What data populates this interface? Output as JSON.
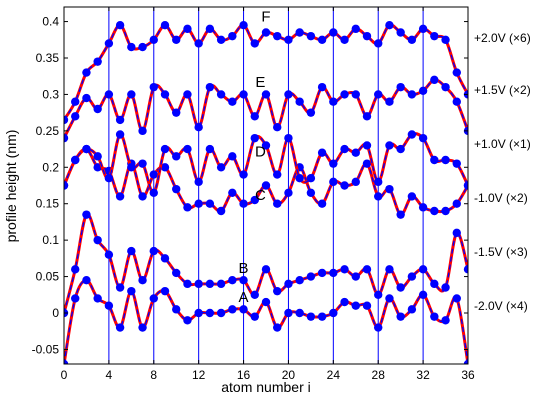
{
  "chart_data": {
    "type": "line",
    "xlabel": "atom number i",
    "ylabel": "profile height (nm)",
    "xlim": [
      0,
      36
    ],
    "ylim": [
      -0.07,
      0.42
    ],
    "x_ticks": [
      0,
      4,
      8,
      12,
      16,
      20,
      24,
      28,
      32,
      36
    ],
    "y_ticks": [
      -0.05,
      0,
      0.05,
      0.1,
      0.15,
      0.2,
      0.25,
      0.3,
      0.35,
      0.4
    ],
    "y_tick_labels": [
      "-0.05",
      "0",
      "0.05",
      "0.1",
      "0.15",
      "0.2",
      "0.25",
      "0.3",
      "0.35",
      "0.4"
    ],
    "vertical_gridlines_x": [
      4,
      8,
      12,
      16,
      20,
      24,
      28,
      32
    ],
    "colors": {
      "model_curve": "#ff0000",
      "fit_curve": "#0000ff",
      "points": "#0000ff",
      "gridline": "#0000ff"
    },
    "curves": [
      {
        "label": "A",
        "right_label": "-2.0V (×4)",
        "label_x": 16,
        "label_y": 0.015,
        "x": [
          0,
          1,
          2,
          3,
          4,
          5,
          6,
          7,
          8,
          9,
          10,
          11,
          12,
          13,
          14,
          15,
          16,
          17,
          18,
          19,
          20,
          21,
          22,
          23,
          24,
          25,
          26,
          27,
          28,
          29,
          30,
          31,
          32,
          33,
          34,
          35,
          36
        ],
        "y": [
          -0.07,
          0.02,
          0.045,
          0.02,
          0.01,
          -0.02,
          0.03,
          -0.02,
          0.02,
          0.03,
          0.005,
          -0.01,
          0.0,
          0.0,
          0.0,
          0.005,
          0.005,
          -0.005,
          0.015,
          -0.02,
          0.0,
          0.0,
          -0.005,
          -0.005,
          0.0,
          0.015,
          0.01,
          0.01,
          -0.02,
          0.02,
          -0.005,
          0.005,
          0.025,
          -0.005,
          -0.01,
          0.02,
          -0.07
        ]
      },
      {
        "label": "B",
        "right_label": "-1.5V (×3)",
        "label_x": 16,
        "label_y": 0.055,
        "x": [
          0,
          1,
          2,
          3,
          4,
          5,
          6,
          7,
          8,
          9,
          10,
          11,
          12,
          13,
          14,
          15,
          16,
          17,
          18,
          19,
          20,
          21,
          22,
          23,
          24,
          25,
          26,
          27,
          28,
          29,
          30,
          31,
          32,
          33,
          34,
          35,
          36
        ],
        "y": [
          0.0,
          0.06,
          0.135,
          0.1,
          0.08,
          0.035,
          0.085,
          0.045,
          0.085,
          0.075,
          0.055,
          0.04,
          0.04,
          0.04,
          0.04,
          0.045,
          0.045,
          0.025,
          0.06,
          0.03,
          0.04,
          0.045,
          0.05,
          0.055,
          0.055,
          0.06,
          0.05,
          0.06,
          0.025,
          0.06,
          0.035,
          0.05,
          0.06,
          0.04,
          0.035,
          0.11,
          0.06
        ]
      },
      {
        "label": "C",
        "right_label": "-1.0V (×2)",
        "label_x": 17.5,
        "label_y": 0.155,
        "x": [
          0,
          1,
          2,
          3,
          4,
          5,
          6,
          7,
          8,
          9,
          10,
          11,
          12,
          13,
          14,
          15,
          16,
          17,
          18,
          19,
          20,
          21,
          22,
          23,
          24,
          25,
          26,
          27,
          28,
          29,
          30,
          31,
          32,
          33,
          34,
          35,
          36
        ],
        "y": [
          0.175,
          0.21,
          0.225,
          0.2,
          0.195,
          0.16,
          0.205,
          0.16,
          0.19,
          0.2,
          0.17,
          0.145,
          0.15,
          0.15,
          0.14,
          0.165,
          0.15,
          0.155,
          0.175,
          0.15,
          0.165,
          0.2,
          0.165,
          0.15,
          0.18,
          0.175,
          0.18,
          0.205,
          0.16,
          0.17,
          0.135,
          0.16,
          0.145,
          0.14,
          0.14,
          0.15,
          0.175
        ]
      },
      {
        "label": "D",
        "right_label": "+1.0V (×1)",
        "label_x": 17.5,
        "label_y": 0.215,
        "x": [
          0,
          1,
          2,
          3,
          4,
          5,
          6,
          7,
          8,
          9,
          10,
          11,
          12,
          13,
          14,
          15,
          16,
          17,
          18,
          19,
          20,
          21,
          22,
          23,
          24,
          25,
          26,
          27,
          28,
          29,
          30,
          31,
          32,
          33,
          34,
          35,
          36
        ],
        "y": [
          0.175,
          0.21,
          0.225,
          0.215,
          0.185,
          0.245,
          0.2,
          0.205,
          0.165,
          0.225,
          0.215,
          0.225,
          0.18,
          0.225,
          0.2,
          0.215,
          0.19,
          0.24,
          0.23,
          0.19,
          0.24,
          0.185,
          0.185,
          0.22,
          0.205,
          0.225,
          0.22,
          0.23,
          0.18,
          0.23,
          0.225,
          0.245,
          0.24,
          0.21,
          0.21,
          0.205,
          0.175
        ]
      },
      {
        "label": "E",
        "right_label": "+1.5V (×2)",
        "label_x": 17.5,
        "label_y": 0.31,
        "x": [
          0,
          1,
          2,
          3,
          4,
          5,
          6,
          7,
          8,
          9,
          10,
          11,
          12,
          13,
          14,
          15,
          16,
          17,
          18,
          19,
          20,
          21,
          22,
          23,
          24,
          25,
          26,
          27,
          28,
          29,
          30,
          31,
          32,
          33,
          34,
          35,
          36
        ],
        "y": [
          0.24,
          0.27,
          0.295,
          0.28,
          0.3,
          0.265,
          0.3,
          0.25,
          0.31,
          0.3,
          0.275,
          0.3,
          0.255,
          0.31,
          0.3,
          0.29,
          0.3,
          0.27,
          0.3,
          0.255,
          0.3,
          0.29,
          0.275,
          0.31,
          0.29,
          0.3,
          0.3,
          0.27,
          0.3,
          0.29,
          0.31,
          0.3,
          0.305,
          0.32,
          0.31,
          0.29,
          0.25
        ]
      },
      {
        "label": "F",
        "right_label": "+2.0V (×6)",
        "label_x": 18,
        "label_y": 0.4,
        "x": [
          0,
          1,
          2,
          3,
          4,
          5,
          6,
          7,
          8,
          9,
          10,
          11,
          12,
          13,
          14,
          15,
          16,
          17,
          18,
          19,
          20,
          21,
          22,
          23,
          24,
          25,
          26,
          27,
          28,
          29,
          30,
          31,
          32,
          33,
          34,
          35,
          36
        ],
        "y": [
          0.265,
          0.29,
          0.33,
          0.345,
          0.37,
          0.395,
          0.365,
          0.365,
          0.375,
          0.395,
          0.375,
          0.39,
          0.37,
          0.39,
          0.375,
          0.38,
          0.395,
          0.37,
          0.385,
          0.38,
          0.375,
          0.385,
          0.38,
          0.375,
          0.385,
          0.375,
          0.39,
          0.38,
          0.37,
          0.395,
          0.385,
          0.375,
          0.39,
          0.38,
          0.375,
          0.33,
          0.3
        ]
      }
    ]
  }
}
